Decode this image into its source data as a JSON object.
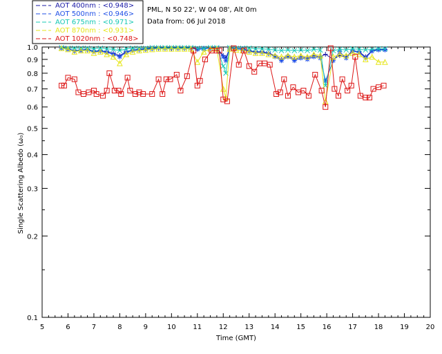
{
  "chart_data": {
    "type": "line",
    "title": "PML, N 50 22', W 04 08', Alt 0m",
    "subtitle": "Data from: 06 Jul 2018",
    "xlabel": "Time (GMT)",
    "ylabel": "Single Scattering Albedo (ω₀)",
    "xlim": [
      5,
      20
    ],
    "ylim": [
      0.1,
      1.0
    ],
    "yscale": "log",
    "x_ticks": [
      "5",
      "6",
      "7",
      "8",
      "9",
      "10",
      "11",
      "12",
      "13",
      "14",
      "15",
      "16",
      "17",
      "18",
      "19",
      "20"
    ],
    "y_ticks": [
      "0.1",
      "0.2",
      "0.3",
      "0.4",
      "0.5",
      "0.6",
      "0.7",
      "0.8",
      "0.9",
      "1.0"
    ],
    "grid": false,
    "legend_position": "top-left, outside plot",
    "series": [
      {
        "name": "AOT  400nm : <0.948>",
        "color": "#1a1aa6",
        "marker": "plus",
        "x": [
          5.75,
          6.0,
          6.25,
          6.5,
          6.75,
          7.0,
          7.25,
          7.5,
          7.75,
          8.0,
          8.25,
          8.5,
          8.75,
          9.0,
          9.25,
          9.5,
          9.75,
          10.0,
          10.25,
          10.5,
          10.75,
          11.0,
          11.25,
          11.5,
          11.75,
          12.0,
          12.1,
          12.25,
          12.5,
          12.75,
          13.0,
          13.25,
          13.5,
          13.75,
          14.0,
          14.25,
          14.5,
          14.75,
          15.0,
          15.25,
          15.5,
          15.75,
          15.95,
          16.25,
          16.5,
          16.75,
          17.0,
          17.25,
          17.5,
          17.75,
          18.0,
          18.25
        ],
        "values": [
          0.99,
          0.985,
          0.97,
          0.975,
          0.98,
          0.965,
          0.97,
          0.96,
          0.95,
          0.93,
          0.96,
          0.975,
          0.98,
          0.985,
          0.99,
          0.99,
          0.99,
          0.99,
          0.99,
          0.99,
          0.99,
          0.985,
          0.99,
          0.99,
          0.99,
          0.93,
          0.91,
          0.99,
          0.99,
          0.985,
          0.97,
          0.96,
          0.96,
          0.95,
          0.93,
          0.9,
          0.93,
          0.9,
          0.92,
          0.91,
          0.93,
          0.92,
          0.94,
          0.9,
          0.93,
          0.92,
          0.97,
          0.96,
          0.92,
          0.97,
          0.98,
          0.98
        ]
      },
      {
        "name": "AOT  500nm : <0.946>",
        "color": "#1f4fe6",
        "marker": "asterisk",
        "x": [
          5.75,
          6.0,
          6.25,
          6.5,
          6.75,
          7.0,
          7.25,
          7.5,
          7.75,
          8.0,
          8.25,
          8.5,
          8.75,
          9.0,
          9.25,
          9.5,
          9.75,
          10.0,
          10.25,
          10.5,
          10.75,
          11.0,
          11.25,
          11.5,
          11.75,
          12.0,
          12.1,
          12.25,
          12.5,
          12.75,
          13.0,
          13.25,
          13.5,
          13.75,
          14.0,
          14.25,
          14.5,
          14.75,
          15.0,
          15.25,
          15.5,
          15.75,
          15.95,
          16.25,
          16.5,
          16.75,
          17.0,
          17.25,
          17.5,
          17.75,
          18.0,
          18.25
        ],
        "values": [
          0.99,
          0.98,
          0.965,
          0.97,
          0.975,
          0.96,
          0.965,
          0.955,
          0.94,
          0.92,
          0.955,
          0.97,
          0.975,
          0.98,
          0.985,
          0.99,
          0.99,
          0.99,
          0.99,
          0.99,
          0.99,
          0.98,
          0.985,
          0.99,
          0.99,
          0.92,
          0.89,
          0.99,
          0.985,
          0.98,
          0.965,
          0.955,
          0.955,
          0.945,
          0.92,
          0.89,
          0.92,
          0.89,
          0.91,
          0.9,
          0.92,
          0.91,
          0.75,
          0.89,
          0.96,
          0.91,
          0.965,
          0.955,
          0.91,
          0.965,
          0.975,
          0.975
        ]
      },
      {
        "name": "AOT  675nm : <0.971>",
        "color": "#14c8b4",
        "marker": "x",
        "x": [
          5.75,
          6.0,
          6.25,
          6.5,
          6.75,
          7.0,
          7.25,
          7.5,
          7.75,
          8.0,
          8.25,
          8.5,
          8.75,
          9.0,
          9.25,
          9.5,
          9.75,
          10.0,
          10.25,
          10.5,
          10.75,
          11.0,
          11.25,
          11.5,
          11.75,
          12.0,
          12.1,
          12.25,
          12.5,
          12.75,
          13.0,
          13.25,
          13.5,
          13.75,
          14.0,
          14.25,
          14.5,
          14.75,
          15.0,
          15.25,
          15.5,
          15.75,
          15.95,
          16.25,
          16.5,
          16.75,
          17.0,
          17.25,
          17.5,
          17.75,
          18.0,
          18.25
        ],
        "values": [
          0.995,
          0.99,
          0.99,
          0.99,
          0.99,
          0.985,
          0.99,
          0.985,
          0.98,
          0.97,
          0.985,
          0.99,
          0.99,
          0.99,
          0.995,
          0.995,
          0.995,
          0.995,
          0.995,
          0.995,
          0.995,
          0.99,
          0.99,
          0.995,
          0.995,
          0.85,
          0.8,
          0.995,
          0.99,
          0.99,
          0.99,
          0.985,
          0.985,
          0.98,
          0.975,
          0.97,
          0.975,
          0.97,
          0.975,
          0.97,
          0.98,
          0.975,
          0.72,
          0.97,
          0.98,
          0.975,
          0.985,
          0.98,
          0.975,
          0.98,
          0.985,
          0.985
        ]
      },
      {
        "name": "AOT  870nm : <0.931>",
        "color": "#e6e619",
        "marker": "triangle",
        "x": [
          5.75,
          6.0,
          6.25,
          6.5,
          6.75,
          7.0,
          7.25,
          7.5,
          7.75,
          8.0,
          8.25,
          8.5,
          8.75,
          9.0,
          9.25,
          9.5,
          9.75,
          10.0,
          10.25,
          10.5,
          10.75,
          11.0,
          11.25,
          11.5,
          11.75,
          12.0,
          12.1,
          12.25,
          12.5,
          12.75,
          13.0,
          13.25,
          13.5,
          13.75,
          14.0,
          14.25,
          14.5,
          14.75,
          15.0,
          15.25,
          15.5,
          15.75,
          15.95,
          16.25,
          16.5,
          16.75,
          17.0,
          17.25,
          17.5,
          17.75,
          18.0,
          18.25
        ],
        "values": [
          0.99,
          0.98,
          0.96,
          0.97,
          0.97,
          0.95,
          0.96,
          0.94,
          0.92,
          0.87,
          0.94,
          0.96,
          0.97,
          0.975,
          0.98,
          0.985,
          0.985,
          0.985,
          0.985,
          0.985,
          0.985,
          0.88,
          0.96,
          0.985,
          0.985,
          0.7,
          0.65,
          0.985,
          0.975,
          0.97,
          0.96,
          0.95,
          0.95,
          0.94,
          0.93,
          0.92,
          0.93,
          0.92,
          0.93,
          0.92,
          0.94,
          0.93,
          0.63,
          0.92,
          0.94,
          0.93,
          0.95,
          0.94,
          0.9,
          0.92,
          0.88,
          0.88
        ]
      },
      {
        "name": "AOT 1020nm : <0.748>",
        "color": "#dc1414",
        "marker": "square",
        "x": [
          5.75,
          5.85,
          6.0,
          6.25,
          6.4,
          6.6,
          6.8,
          7.0,
          7.1,
          7.35,
          7.5,
          7.6,
          7.8,
          7.95,
          8.05,
          8.3,
          8.4,
          8.6,
          8.75,
          8.9,
          9.25,
          9.5,
          9.65,
          9.8,
          9.95,
          10.2,
          10.35,
          10.6,
          10.85,
          11.0,
          11.1,
          11.3,
          11.55,
          11.75,
          11.85,
          12.0,
          12.15,
          12.4,
          12.6,
          12.8,
          13.0,
          13.2,
          13.4,
          13.6,
          13.8,
          14.05,
          14.2,
          14.35,
          14.5,
          14.7,
          14.9,
          15.1,
          15.3,
          15.55,
          15.8,
          15.95,
          16.15,
          16.3,
          16.45,
          16.6,
          16.8,
          16.95,
          17.1,
          17.3,
          17.5,
          17.65,
          17.8,
          18.0,
          18.2
        ],
        "values": [
          0.72,
          0.72,
          0.77,
          0.76,
          0.68,
          0.67,
          0.68,
          0.69,
          0.67,
          0.66,
          0.69,
          0.8,
          0.69,
          0.69,
          0.67,
          0.77,
          0.69,
          0.67,
          0.68,
          0.67,
          0.67,
          0.76,
          0.67,
          0.76,
          0.76,
          0.79,
          0.69,
          0.78,
          0.97,
          0.72,
          0.75,
          0.9,
          0.97,
          0.97,
          0.97,
          0.64,
          0.63,
          0.99,
          0.86,
          0.97,
          0.85,
          0.81,
          0.87,
          0.87,
          0.86,
          0.67,
          0.68,
          0.76,
          0.66,
          0.71,
          0.68,
          0.69,
          0.66,
          0.79,
          0.69,
          0.6,
          0.99,
          0.7,
          0.66,
          0.76,
          0.69,
          0.72,
          0.92,
          0.66,
          0.65,
          0.65,
          0.7,
          0.71,
          0.72
        ]
      }
    ]
  }
}
